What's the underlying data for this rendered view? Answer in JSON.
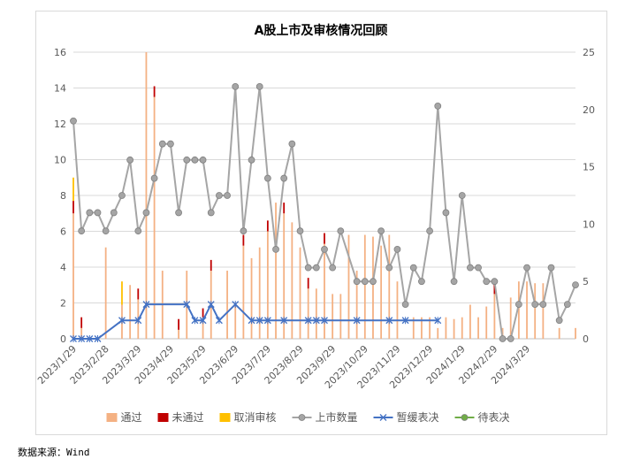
{
  "chart_data": {
    "type": "bar+line",
    "title": "A股上市及审核情况回顾",
    "legend_position": "bottom",
    "grid": true,
    "x_tick_labels": [
      "2023/1/29",
      "2023/2/28",
      "2023/3/29",
      "2023/4/29",
      "2023/5/29",
      "2023/6/29",
      "2023/7/29",
      "2023/8/29",
      "2023/9/29",
      "2023/10/29",
      "2023/11/29",
      "2023/12/29",
      "2024/1/29",
      "2024/2/29",
      "2024/3/29"
    ],
    "x_tick_period_index": [
      0,
      4,
      8,
      12,
      16,
      20,
      24,
      28,
      32,
      36,
      40,
      44,
      48,
      52,
      56
    ],
    "y_left_range": [
      0,
      16
    ],
    "y_left_ticks": [
      0,
      2,
      4,
      6,
      8,
      10,
      12,
      14,
      16
    ],
    "y_right_range": [
      0,
      25
    ],
    "y_right_ticks": [
      0,
      5,
      10,
      15,
      20,
      25
    ],
    "bar_series": [
      {
        "name": "通过",
        "color": "#f4b183",
        "axis": "left",
        "values": [
          7,
          0.6,
          0,
          0,
          5.1,
          0,
          1.9,
          3,
          2.2,
          16,
          13.5,
          3.8,
          0,
          0.5,
          3.8,
          0,
          1.2,
          3.8,
          0,
          3.8,
          2,
          5.2,
          4.5,
          5.1,
          6,
          7.6,
          7,
          6.5,
          5.1,
          2.8,
          2.8,
          5.3,
          2.5,
          2.5,
          5.8,
          3.8,
          5.8,
          5.7,
          5.2,
          5.8,
          3.2,
          0,
          1.2,
          1.2,
          1.2,
          0.6,
          1.2,
          1.1,
          1.2,
          1.9,
          1.2,
          1.8,
          2.5,
          0.6,
          2.3,
          3.2,
          3.2,
          3.1,
          3.1,
          0,
          0.6,
          0,
          0.6
        ]
      },
      {
        "name": "未通过",
        "color": "#c00000",
        "axis": "left",
        "values": [
          0.7,
          0.6,
          0,
          0,
          0,
          0,
          0,
          0,
          0.6,
          0,
          0.6,
          0,
          0,
          0.6,
          0,
          0,
          0.5,
          0.6,
          0,
          0,
          0,
          0.6,
          0,
          0,
          0.6,
          0,
          0.6,
          0,
          0,
          0.6,
          0,
          0.6,
          0,
          0,
          0,
          0,
          0,
          0,
          0,
          0,
          0,
          0,
          0,
          0,
          0,
          0,
          0,
          0,
          0,
          0,
          0,
          0,
          0.6,
          0,
          0,
          0,
          0,
          0,
          0,
          0,
          0,
          0,
          0
        ]
      },
      {
        "name": "取消审核",
        "color": "#ffc000",
        "axis": "left",
        "values": [
          1.3,
          0,
          0,
          0,
          0,
          0,
          1.3,
          0,
          0,
          0,
          0,
          0,
          0,
          0,
          0,
          0,
          0,
          0,
          0,
          0,
          0,
          0,
          0,
          0,
          0,
          0,
          0,
          0,
          0,
          0,
          0,
          0,
          0,
          0,
          0,
          0,
          0,
          0,
          0,
          0,
          0,
          0,
          0,
          0,
          0,
          0,
          0,
          0,
          0,
          0,
          0,
          0,
          0,
          0,
          0,
          0,
          0,
          0,
          0,
          0,
          0,
          0,
          0
        ]
      }
    ],
    "line_series": [
      {
        "name": "上市数量",
        "color": "#a5a5a5",
        "marker": "circle",
        "axis": "right",
        "values": [
          19,
          9.4,
          11,
          11,
          9.4,
          11,
          12.5,
          15.6,
          9.4,
          11,
          14,
          17,
          17,
          11,
          15.6,
          15.6,
          15.6,
          11,
          12.5,
          12.5,
          22,
          9.4,
          15.6,
          22,
          14,
          7.8,
          14,
          17,
          9.4,
          6.2,
          6.2,
          7.8,
          6.2,
          9.4,
          null,
          5,
          5,
          5,
          9.4,
          6.2,
          7.8,
          3,
          6.2,
          5,
          9.4,
          20.3,
          11,
          5,
          12.5,
          6.2,
          6.2,
          5,
          5,
          0,
          0,
          3,
          6.2,
          3,
          3,
          6.2,
          1.6,
          3,
          4.7
        ]
      },
      {
        "name": "暂缓表决",
        "color": "#4472c4",
        "marker": "x",
        "axis": "right",
        "points": [
          [
            0,
            0
          ],
          [
            1,
            0
          ],
          [
            2,
            0
          ],
          [
            3,
            0
          ],
          [
            6,
            1.6
          ],
          [
            8,
            1.6
          ],
          [
            9,
            3
          ],
          [
            14,
            3
          ],
          [
            15,
            1.6
          ],
          [
            16,
            1.6
          ],
          [
            17,
            3
          ],
          [
            18,
            1.6
          ],
          [
            20,
            3
          ],
          [
            22,
            1.6
          ],
          [
            23,
            1.6
          ],
          [
            24,
            1.6
          ],
          [
            26,
            1.6
          ],
          [
            29,
            1.6
          ],
          [
            30,
            1.6
          ],
          [
            31,
            1.6
          ],
          [
            35,
            1.6
          ],
          [
            39,
            1.6
          ],
          [
            41,
            1.6
          ],
          [
            45,
            1.6
          ]
        ]
      },
      {
        "name": "待表决",
        "color": "#70ad47",
        "marker": "circle",
        "axis": "right",
        "points": []
      }
    ]
  },
  "source_note": "数据来源：Wind"
}
